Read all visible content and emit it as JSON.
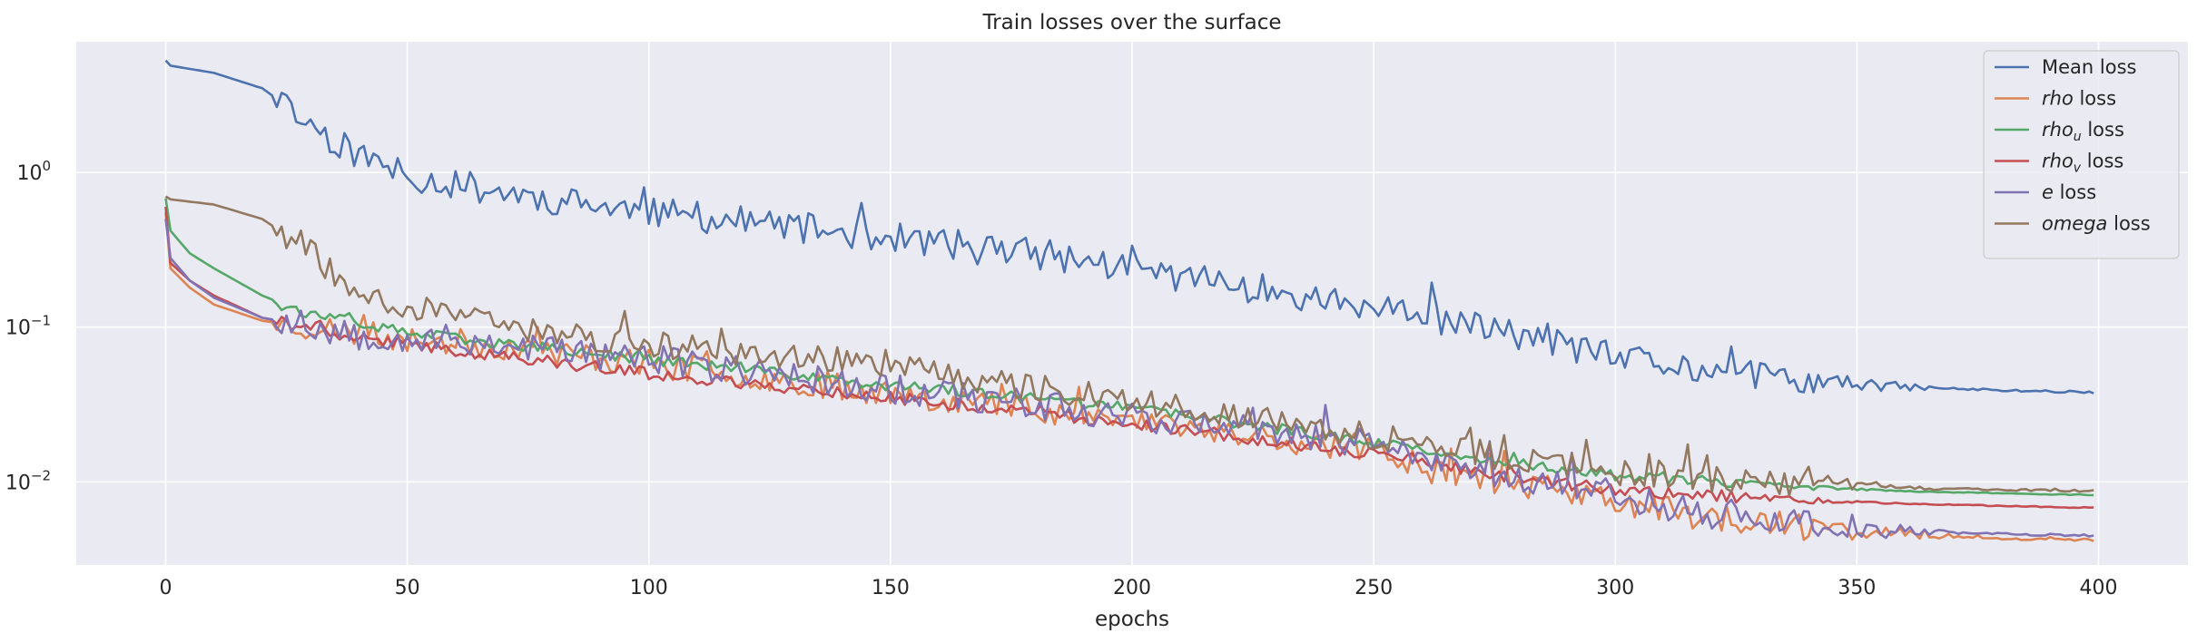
{
  "chart_data": {
    "type": "line",
    "title": "Train losses over the surface",
    "xlabel": "epochs",
    "ylabel": "",
    "yscale": "log",
    "xlim": [
      -18.5,
      418.5
    ],
    "ylim": [
      0.0029,
      7.0
    ],
    "grid": true,
    "legend_position": "top-right",
    "xticks": [
      0,
      50,
      100,
      150,
      200,
      250,
      300,
      350,
      400
    ],
    "yticks": [
      {
        "value": 1.0,
        "label": "10",
        "exp": "0"
      },
      {
        "value": 0.1,
        "label": "10",
        "exp": "−1"
      },
      {
        "value": 0.01,
        "label": "10",
        "exp": "−2"
      }
    ],
    "series": [
      {
        "name": "Mean loss",
        "label_main": "Mean loss",
        "label_sub": "",
        "label_suffix": "",
        "italic": false,
        "color": "#4c72b0",
        "keypoints": [
          [
            0,
            5.3
          ],
          [
            1,
            4.9
          ],
          [
            10,
            4.4
          ],
          [
            20,
            3.5
          ],
          [
            28,
            2.3
          ],
          [
            33,
            1.75
          ],
          [
            40,
            1.3
          ],
          [
            48,
            1.0
          ],
          [
            55,
            0.88
          ],
          [
            70,
            0.75
          ],
          [
            85,
            0.63
          ],
          [
            100,
            0.55
          ],
          [
            120,
            0.48
          ],
          [
            140,
            0.41
          ],
          [
            160,
            0.35
          ],
          [
            180,
            0.3
          ],
          [
            200,
            0.24
          ],
          [
            220,
            0.19
          ],
          [
            240,
            0.15
          ],
          [
            260,
            0.115
          ],
          [
            280,
            0.09
          ],
          [
            300,
            0.063
          ],
          [
            320,
            0.052
          ],
          [
            340,
            0.044
          ],
          [
            360,
            0.041
          ],
          [
            380,
            0.039
          ],
          [
            399,
            0.038
          ]
        ],
        "noise": 0.1,
        "noise_fade": 330,
        "seed": 11
      },
      {
        "name": "rho loss",
        "label_main": "rho",
        "label_sub": "",
        "label_suffix": " loss",
        "italic": true,
        "color": "#dd8452",
        "keypoints": [
          [
            0,
            0.55
          ],
          [
            1,
            0.24
          ],
          [
            5,
            0.18
          ],
          [
            10,
            0.14
          ],
          [
            20,
            0.11
          ],
          [
            40,
            0.09
          ],
          [
            70,
            0.075
          ],
          [
            100,
            0.058
          ],
          [
            150,
            0.038
          ],
          [
            200,
            0.025
          ],
          [
            250,
            0.016
          ],
          [
            270,
            0.011
          ],
          [
            300,
            0.0075
          ],
          [
            320,
            0.0058
          ],
          [
            340,
            0.005
          ],
          [
            360,
            0.0046
          ],
          [
            380,
            0.0043
          ],
          [
            399,
            0.0042
          ]
        ],
        "noise": 0.09,
        "noise_fade": 335,
        "seed": 23
      },
      {
        "name": "rho_u loss",
        "label_main": "rho",
        "label_sub": "u",
        "label_suffix": " loss",
        "italic": true,
        "color": "#55a868",
        "keypoints": [
          [
            0,
            0.68
          ],
          [
            1,
            0.42
          ],
          [
            5,
            0.3
          ],
          [
            10,
            0.24
          ],
          [
            20,
            0.16
          ],
          [
            30,
            0.12
          ],
          [
            50,
            0.092
          ],
          [
            70,
            0.078
          ],
          [
            100,
            0.062
          ],
          [
            150,
            0.042
          ],
          [
            200,
            0.03
          ],
          [
            250,
            0.018
          ],
          [
            280,
            0.013
          ],
          [
            300,
            0.011
          ],
          [
            330,
            0.0095
          ],
          [
            360,
            0.0087
          ],
          [
            399,
            0.0082
          ]
        ],
        "noise": 0.035,
        "noise_fade": 320,
        "seed": 37
      },
      {
        "name": "rho_v loss",
        "label_main": "rho",
        "label_sub": "v",
        "label_suffix": " loss",
        "italic": true,
        "color": "#c44e52",
        "keypoints": [
          [
            0,
            0.6
          ],
          [
            1,
            0.26
          ],
          [
            5,
            0.2
          ],
          [
            10,
            0.16
          ],
          [
            20,
            0.115
          ],
          [
            40,
            0.085
          ],
          [
            70,
            0.065
          ],
          [
            100,
            0.05
          ],
          [
            150,
            0.035
          ],
          [
            200,
            0.024
          ],
          [
            250,
            0.015
          ],
          [
            280,
            0.0105
          ],
          [
            300,
            0.0089
          ],
          [
            330,
            0.0078
          ],
          [
            360,
            0.0072
          ],
          [
            399,
            0.0068
          ]
        ],
        "noise": 0.04,
        "noise_fade": 320,
        "seed": 41
      },
      {
        "name": "e loss",
        "label_main": "e",
        "label_sub": "",
        "label_suffix": " loss",
        "italic": true,
        "color": "#8172b3",
        "keypoints": [
          [
            0,
            0.5
          ],
          [
            1,
            0.28
          ],
          [
            5,
            0.2
          ],
          [
            10,
            0.155
          ],
          [
            20,
            0.115
          ],
          [
            40,
            0.09
          ],
          [
            70,
            0.078
          ],
          [
            100,
            0.062
          ],
          [
            150,
            0.04
          ],
          [
            200,
            0.027
          ],
          [
            250,
            0.017
          ],
          [
            270,
            0.0125
          ],
          [
            300,
            0.0082
          ],
          [
            320,
            0.0062
          ],
          [
            340,
            0.0053
          ],
          [
            360,
            0.0048
          ],
          [
            380,
            0.0046
          ],
          [
            399,
            0.0045
          ]
        ],
        "noise": 0.1,
        "noise_fade": 335,
        "seed": 53
      },
      {
        "name": "omega loss",
        "label_main": "omega",
        "label_sub": "",
        "label_suffix": " loss",
        "italic": true,
        "color": "#937860",
        "keypoints": [
          [
            0,
            0.7
          ],
          [
            1,
            0.67
          ],
          [
            10,
            0.62
          ],
          [
            20,
            0.5
          ],
          [
            28,
            0.34
          ],
          [
            33,
            0.25
          ],
          [
            40,
            0.18
          ],
          [
            50,
            0.135
          ],
          [
            70,
            0.1
          ],
          [
            100,
            0.078
          ],
          [
            130,
            0.065
          ],
          [
            150,
            0.055
          ],
          [
            200,
            0.034
          ],
          [
            250,
            0.02
          ],
          [
            280,
            0.014
          ],
          [
            300,
            0.0115
          ],
          [
            330,
            0.0098
          ],
          [
            360,
            0.0091
          ],
          [
            399,
            0.0087
          ]
        ],
        "noise": 0.09,
        "noise_fade": 330,
        "seed": 67
      }
    ]
  }
}
